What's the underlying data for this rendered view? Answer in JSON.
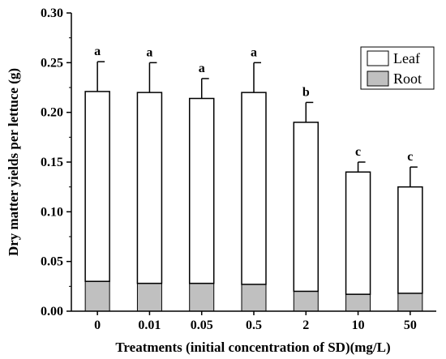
{
  "chart_data": {
    "type": "bar",
    "stacked": true,
    "title": "",
    "xlabel": "Treatments (initial concentration of SD)(mg/L)",
    "ylabel": "Dry matter yields per lettuce (g)",
    "categories": [
      "0",
      "0.01",
      "0.05",
      "0.5",
      "2",
      "10",
      "50"
    ],
    "ylim": [
      0.0,
      0.3
    ],
    "yticks": [
      0.0,
      0.05,
      0.1,
      0.15,
      0.2,
      0.25,
      0.3
    ],
    "ytick_labels": [
      "0.00",
      "0.05",
      "0.10",
      "0.15",
      "0.20",
      "0.25",
      "0.30"
    ],
    "series": [
      {
        "name": "Root",
        "color": "#c0c0c0",
        "values": [
          0.03,
          0.028,
          0.028,
          0.027,
          0.02,
          0.017,
          0.018
        ]
      },
      {
        "name": "Leaf",
        "color": "#ffffff",
        "values": [
          0.191,
          0.192,
          0.186,
          0.193,
          0.17,
          0.123,
          0.107
        ]
      }
    ],
    "totals": [
      0.221,
      0.22,
      0.214,
      0.22,
      0.19,
      0.14,
      0.125
    ],
    "error_bars": [
      0.03,
      0.03,
      0.02,
      0.03,
      0.02,
      0.01,
      0.02
    ],
    "significance_labels": [
      "a",
      "a",
      "a",
      "a",
      "b",
      "c",
      "c"
    ],
    "legend": {
      "position": "top-right",
      "entries": [
        "Leaf",
        "Root"
      ]
    },
    "grid": false
  }
}
